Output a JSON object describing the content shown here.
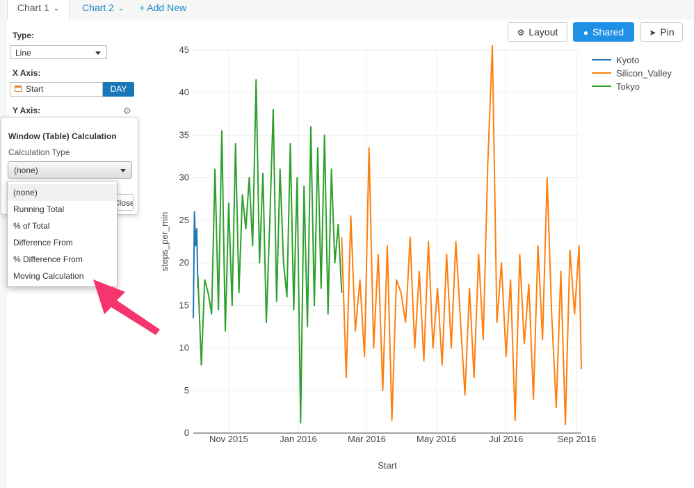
{
  "tabs": {
    "chart1": "Chart 1",
    "chart2": "Chart 2",
    "add_new": "+ Add New"
  },
  "controls": {
    "type_label": "Type:",
    "type_value": "Line",
    "x_label": "X Axis:",
    "x_value": "Start",
    "x_unit": "DAY",
    "y_label": "Y Axis:"
  },
  "popover": {
    "title": "Window (Table) Calculation",
    "subtitle": "Calculation Type",
    "selected": "(none)",
    "close_label": "Close",
    "options": [
      "(none)",
      "Running Total",
      "% of Total",
      "Difference From",
      "% Difference From",
      "Moving Calculation"
    ]
  },
  "toolbar": {
    "layout": "Layout",
    "shared": "Shared",
    "pin": "Pin"
  },
  "colors": {
    "accent": "#1e90e6",
    "kyoto": "#1f77b4",
    "silicon_valley": "#ff7f0e",
    "tokyo": "#2ca02c",
    "arrow": "#f4356e"
  },
  "chart_data": {
    "type": "line",
    "xlabel": "Start",
    "ylabel": "steps_per_min",
    "ylim": [
      0,
      45
    ],
    "yticks": [
      0,
      5,
      10,
      15,
      20,
      25,
      30,
      35,
      40,
      45
    ],
    "xticks": [
      "Nov 2015",
      "Jan 2016",
      "Mar 2016",
      "May 2016",
      "Jul 2016",
      "Sep 2016"
    ],
    "xrange": [
      "2015-10-01",
      "2016-09-05"
    ],
    "legend_position": "top-right",
    "series": [
      {
        "name": "Kyoto",
        "x": [
          "2015-10-01",
          "2015-10-02",
          "2015-10-03",
          "2015-10-04",
          "2015-10-05"
        ],
        "y": [
          13.5,
          26.0,
          22.0,
          24.0,
          17.0
        ]
      },
      {
        "name": "Tokyo",
        "x": [
          "2015-10-05",
          "2015-10-08",
          "2015-10-11",
          "2015-10-14",
          "2015-10-17",
          "2015-10-20",
          "2015-10-23",
          "2015-10-26",
          "2015-10-29",
          "2015-11-01",
          "2015-11-04",
          "2015-11-07",
          "2015-11-10",
          "2015-11-13",
          "2015-11-16",
          "2015-11-19",
          "2015-11-22",
          "2015-11-25",
          "2015-11-28",
          "2015-12-01",
          "2015-12-04",
          "2015-12-07",
          "2015-12-10",
          "2015-12-13",
          "2015-12-16",
          "2015-12-19",
          "2015-12-22",
          "2015-12-25",
          "2015-12-28",
          "2015-12-31",
          "2016-01-03",
          "2016-01-06",
          "2016-01-09",
          "2016-01-12",
          "2016-01-15",
          "2016-01-18",
          "2016-01-21",
          "2016-01-24",
          "2016-01-27",
          "2016-01-30",
          "2016-02-02",
          "2016-02-05",
          "2016-02-08"
        ],
        "y": [
          18.5,
          8.0,
          18.0,
          16.5,
          14.0,
          31.0,
          14.5,
          35.5,
          12.0,
          27.0,
          15.0,
          34.0,
          16.5,
          28.0,
          24.0,
          30.0,
          22.0,
          41.5,
          20.0,
          30.5,
          13.0,
          25.0,
          38.0,
          15.5,
          31.0,
          20.0,
          16.0,
          34.0,
          14.5,
          30.0,
          1.2,
          29.0,
          12.5,
          36.0,
          15.0,
          33.5,
          17.0,
          35.0,
          14.0,
          31.0,
          20.0,
          24.5,
          16.5
        ]
      },
      {
        "name": "Silicon_Valley",
        "x": [
          "2016-02-08",
          "2016-02-12",
          "2016-02-16",
          "2016-02-20",
          "2016-02-24",
          "2016-02-28",
          "2016-03-03",
          "2016-03-07",
          "2016-03-11",
          "2016-03-15",
          "2016-03-19",
          "2016-03-23",
          "2016-03-27",
          "2016-03-31",
          "2016-04-04",
          "2016-04-08",
          "2016-04-12",
          "2016-04-16",
          "2016-04-20",
          "2016-04-24",
          "2016-04-28",
          "2016-05-02",
          "2016-05-06",
          "2016-05-10",
          "2016-05-14",
          "2016-05-18",
          "2016-05-22",
          "2016-05-26",
          "2016-05-30",
          "2016-06-03",
          "2016-06-07",
          "2016-06-11",
          "2016-06-15",
          "2016-06-19",
          "2016-06-23",
          "2016-06-27",
          "2016-07-01",
          "2016-07-05",
          "2016-07-09",
          "2016-07-13",
          "2016-07-17",
          "2016-07-21",
          "2016-07-25",
          "2016-07-29",
          "2016-08-02",
          "2016-08-06",
          "2016-08-10",
          "2016-08-14",
          "2016-08-18",
          "2016-08-22",
          "2016-08-26",
          "2016-08-30",
          "2016-09-03",
          "2016-09-05"
        ],
        "y": [
          23.0,
          6.5,
          25.5,
          12.0,
          18.0,
          9.0,
          33.5,
          10.0,
          21.0,
          5.0,
          22.0,
          1.5,
          18.0,
          16.5,
          13.0,
          23.0,
          10.0,
          19.0,
          8.5,
          22.5,
          10.0,
          17.0,
          8.0,
          21.0,
          10.0,
          22.5,
          13.5,
          4.5,
          17.0,
          6.5,
          21.0,
          11.0,
          31.5,
          45.5,
          13.0,
          20.0,
          9.0,
          18.0,
          1.5,
          21.0,
          10.5,
          17.5,
          4.0,
          22.0,
          11.0,
          30.0,
          14.0,
          3.0,
          19.0,
          1.0,
          21.5,
          14.0,
          22.0,
          7.5
        ]
      }
    ]
  }
}
